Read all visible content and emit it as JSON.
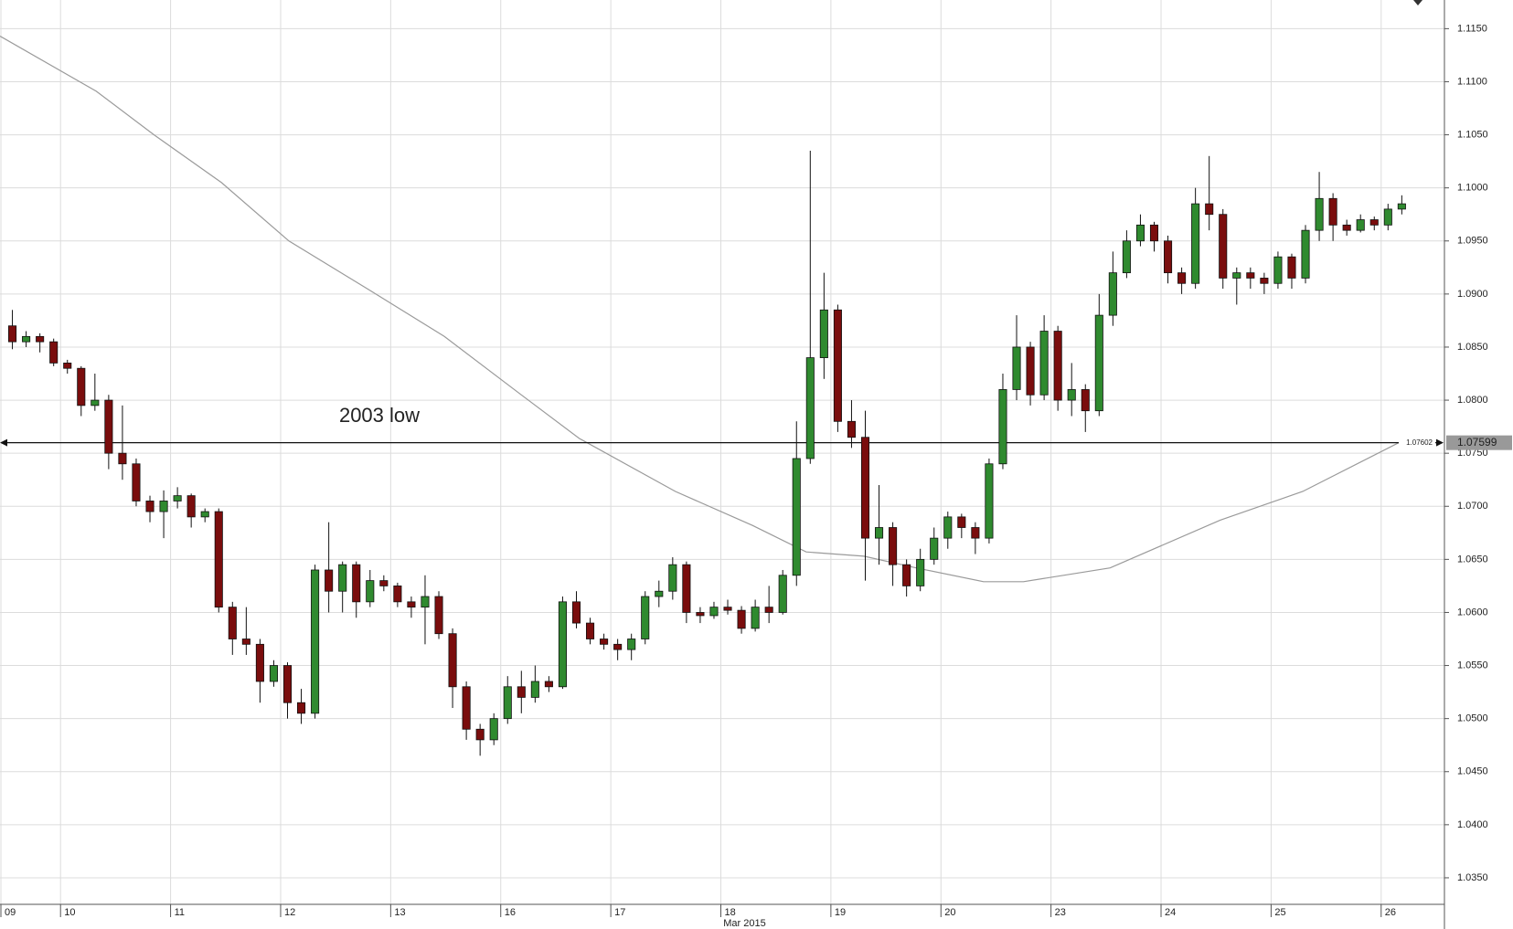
{
  "chart_data": {
    "type": "candlestick",
    "annotation": "2003 low",
    "x_axis_label": "Mar 2015",
    "xlim": [
      -0.4,
      104.6
    ],
    "xticks": [
      {
        "value": -0.4,
        "label": "09"
      },
      {
        "value": 4,
        "label": "10"
      },
      {
        "value": 12,
        "label": "11"
      },
      {
        "value": 20,
        "label": "12"
      },
      {
        "value": 28,
        "label": "13"
      },
      {
        "value": 36,
        "label": "16"
      },
      {
        "value": 44,
        "label": "17"
      },
      {
        "value": 52,
        "label": "18"
      },
      {
        "value": 60,
        "label": "19"
      },
      {
        "value": 68,
        "label": "20"
      },
      {
        "value": 76,
        "label": "23"
      },
      {
        "value": 84,
        "label": "24"
      },
      {
        "value": 92,
        "label": "25"
      },
      {
        "value": 100,
        "label": "26"
      }
    ],
    "ylim": [
      1.0325,
      1.1177
    ],
    "yticks": [
      {
        "value": 1.035,
        "label": "1.0350"
      },
      {
        "value": 1.04,
        "label": "1.0400"
      },
      {
        "value": 1.045,
        "label": "1.0450"
      },
      {
        "value": 1.05,
        "label": "1.0500"
      },
      {
        "value": 1.055,
        "label": "1.0550"
      },
      {
        "value": 1.06,
        "label": "1.0600"
      },
      {
        "value": 1.065,
        "label": "1.0650"
      },
      {
        "value": 1.07,
        "label": "1.0700"
      },
      {
        "value": 1.075,
        "label": "1.0750"
      },
      {
        "value": 1.08,
        "label": "1.0800"
      },
      {
        "value": 1.085,
        "label": "1.0850"
      },
      {
        "value": 1.09,
        "label": "1.0900"
      },
      {
        "value": 1.095,
        "label": "1.0950"
      },
      {
        "value": 1.1,
        "label": "1.1000"
      },
      {
        "value": 1.105,
        "label": "1.1050"
      },
      {
        "value": 1.11,
        "label": "1.1100"
      },
      {
        "value": 1.115,
        "label": "1.1150"
      }
    ],
    "grid": true,
    "up_color": "#2f8a2f",
    "down_color": "#7a0d0d",
    "open": [
      1.087,
      1.0855,
      1.086,
      1.0855,
      1.0835,
      1.083,
      1.0795,
      1.08,
      1.075,
      1.074,
      1.0705,
      1.0695,
      1.0705,
      1.071,
      1.069,
      1.0695,
      1.0605,
      1.0575,
      1.057,
      1.0535,
      1.055,
      1.0515,
      1.0505,
      1.064,
      1.062,
      1.0645,
      1.061,
      1.063,
      1.0625,
      1.061,
      1.0605,
      1.0615,
      1.058,
      1.053,
      1.049,
      1.048,
      1.05,
      1.053,
      1.052,
      1.0535,
      1.053,
      1.061,
      1.059,
      1.0575,
      1.057,
      1.0565,
      1.0575,
      1.0615,
      1.062,
      1.0645,
      1.06,
      1.0597,
      1.0605,
      1.0602,
      1.0585,
      1.0605,
      1.06,
      1.0635,
      1.0745,
      1.084,
      1.0885,
      1.078,
      1.0765,
      1.067,
      1.068,
      1.0645,
      1.0625,
      1.065,
      1.067,
      1.069,
      1.068,
      1.067,
      1.074,
      1.081,
      1.085,
      1.0805,
      1.0865,
      1.08,
      1.081,
      1.079,
      1.088,
      1.092,
      1.095,
      1.0965,
      1.095,
      1.092,
      1.091,
      1.0985,
      1.0975,
      1.0915,
      1.092,
      1.0915,
      1.091,
      1.0935,
      1.0915,
      1.096,
      1.099,
      1.0965,
      1.096,
      1.097,
      1.0965,
      1.098
    ],
    "high": [
      1.0885,
      1.0865,
      1.0863,
      1.0858,
      1.0838,
      1.0832,
      1.0825,
      1.0805,
      1.0795,
      1.0745,
      1.071,
      1.0715,
      1.0718,
      1.0712,
      1.0698,
      1.0698,
      1.061,
      1.0605,
      1.0575,
      1.0555,
      1.0553,
      1.0528,
      1.0645,
      1.0685,
      1.0648,
      1.0648,
      1.064,
      1.0635,
      1.0628,
      1.0615,
      1.0635,
      1.062,
      1.0585,
      1.0535,
      1.0495,
      1.0505,
      1.054,
      1.0545,
      1.055,
      1.054,
      1.0615,
      1.062,
      1.0595,
      1.058,
      1.0575,
      1.058,
      1.062,
      1.063,
      1.0652,
      1.0648,
      1.0605,
      1.061,
      1.0612,
      1.0606,
      1.0612,
      1.0625,
      1.064,
      1.078,
      1.1035,
      1.092,
      1.089,
      1.08,
      1.079,
      1.072,
      1.0685,
      1.065,
      1.066,
      1.068,
      1.0695,
      1.0693,
      1.0685,
      1.0745,
      1.0825,
      1.088,
      1.0855,
      1.088,
      1.087,
      1.0835,
      1.0815,
      1.09,
      1.094,
      1.096,
      1.0975,
      1.0968,
      1.0955,
      1.0925,
      1.1,
      1.103,
      1.098,
      1.0925,
      1.0925,
      1.092,
      1.094,
      1.0938,
      1.0965,
      1.1015,
      1.0995,
      1.097,
      1.0975,
      1.0973,
      1.0985,
      1.0993
    ],
    "low": [
      1.0848,
      1.085,
      1.0845,
      1.0832,
      1.0825,
      1.0785,
      1.079,
      1.0735,
      1.0725,
      1.07,
      1.0685,
      1.067,
      1.0698,
      1.068,
      1.0685,
      1.06,
      1.056,
      1.056,
      1.0515,
      1.053,
      1.05,
      1.0495,
      1.05,
      1.06,
      1.06,
      1.0595,
      1.0605,
      1.062,
      1.0605,
      1.0595,
      1.057,
      1.0575,
      1.051,
      1.048,
      1.0465,
      1.0475,
      1.0495,
      1.0505,
      1.0515,
      1.0525,
      1.0528,
      1.0585,
      1.057,
      1.0565,
      1.0555,
      1.0555,
      1.057,
      1.0605,
      1.0612,
      1.059,
      1.059,
      1.0594,
      1.0598,
      1.058,
      1.0582,
      1.059,
      1.0598,
      1.0625,
      1.074,
      1.082,
      1.077,
      1.0755,
      1.063,
      1.0645,
      1.0625,
      1.0615,
      1.062,
      1.0645,
      1.066,
      1.067,
      1.0655,
      1.0665,
      1.0735,
      1.08,
      1.0795,
      1.08,
      1.079,
      1.0785,
      1.077,
      1.0785,
      1.087,
      1.0915,
      1.0945,
      1.094,
      1.091,
      1.09,
      1.0905,
      1.096,
      1.0905,
      1.089,
      1.0905,
      1.09,
      1.0905,
      1.0905,
      1.091,
      1.095,
      1.095,
      1.0955,
      1.0958,
      1.096,
      1.096,
      1.0975
    ],
    "close": [
      1.0855,
      1.086,
      1.0855,
      1.0835,
      1.083,
      1.0795,
      1.08,
      1.075,
      1.074,
      1.0705,
      1.0695,
      1.0705,
      1.071,
      1.069,
      1.0695,
      1.0605,
      1.0575,
      1.057,
      1.0535,
      1.055,
      1.0515,
      1.0505,
      1.064,
      1.062,
      1.0645,
      1.061,
      1.063,
      1.0625,
      1.061,
      1.0605,
      1.0615,
      1.058,
      1.053,
      1.049,
      1.048,
      1.05,
      1.053,
      1.052,
      1.0535,
      1.053,
      1.061,
      1.059,
      1.0575,
      1.057,
      1.0565,
      1.0575,
      1.0615,
      1.062,
      1.0645,
      1.06,
      1.0597,
      1.0605,
      1.0602,
      1.0585,
      1.0605,
      1.06,
      1.0635,
      1.0745,
      1.084,
      1.0885,
      1.078,
      1.0765,
      1.067,
      1.068,
      1.0645,
      1.0625,
      1.065,
      1.067,
      1.069,
      1.068,
      1.067,
      1.074,
      1.081,
      1.085,
      1.0805,
      1.0865,
      1.08,
      1.081,
      1.079,
      1.088,
      1.092,
      1.095,
      1.0965,
      1.095,
      1.092,
      1.091,
      1.0985,
      1.0975,
      1.0915,
      1.092,
      1.0915,
      1.091,
      1.0935,
      1.0915,
      1.096,
      1.099,
      1.0965,
      1.096,
      1.097,
      1.0965,
      1.098,
      1.0985
    ],
    "moving_average": {
      "color": "#9a9a9a",
      "x": [
        -0.4,
        6.6,
        10.8,
        15.7,
        20.6,
        26.3,
        31.9,
        37.5,
        41.7,
        48.7,
        54.3,
        58.2,
        62.4,
        66.2,
        71.1,
        74,
        80.3,
        88.3,
        94.3,
        101.3
      ],
      "values": [
        1.1143,
        1.1091,
        1.105,
        1.1005,
        1.095,
        1.0905,
        1.086,
        1.0805,
        1.0764,
        1.0714,
        1.0682,
        1.0657,
        1.0653,
        1.0642,
        1.0629,
        1.0629,
        1.0642,
        1.0687,
        1.0714,
        1.076
      ]
    },
    "level_line": {
      "value": 1.07599,
      "tag": 1.07602
    }
  }
}
